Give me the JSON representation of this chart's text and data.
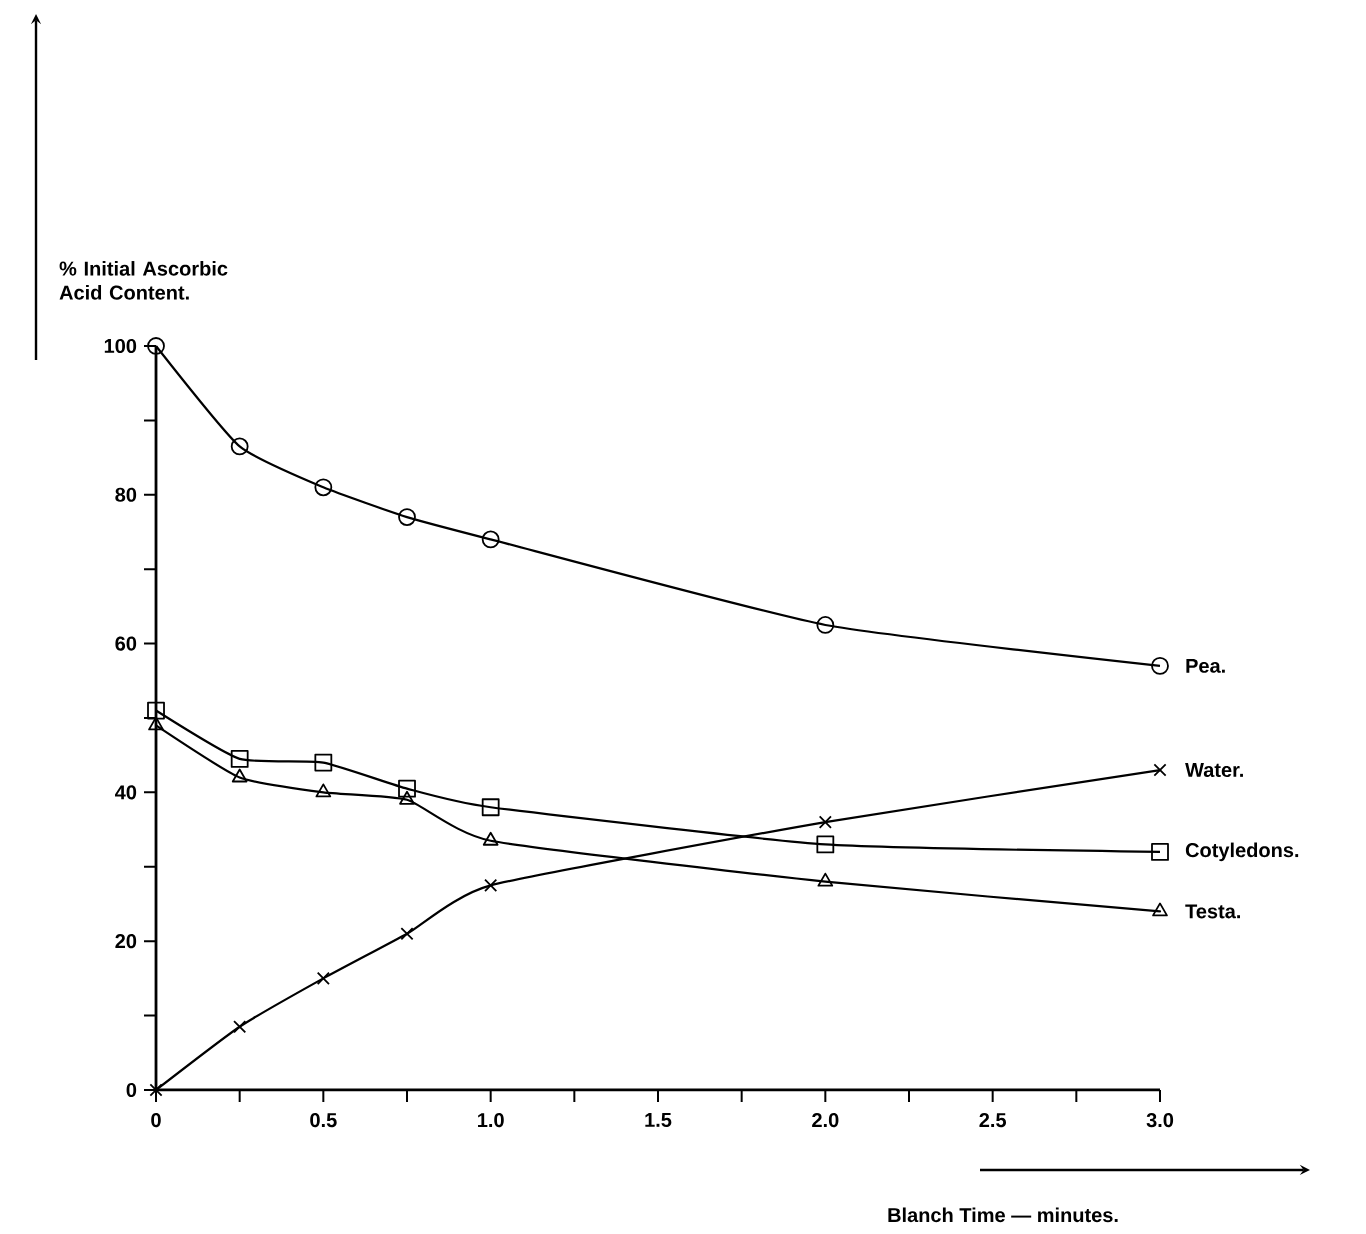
{
  "chart_data": {
    "type": "line",
    "xlabel": "Blanch Time — minutes.",
    "ylabel": "% Initial Ascorbic Acid Content.",
    "x": [
      0,
      0.25,
      0.5,
      0.75,
      1.0,
      2.0,
      3.0
    ],
    "series": [
      {
        "name": "Pea.",
        "color": "#000000",
        "marker": "circle",
        "values": [
          100,
          86.5,
          81,
          77,
          74,
          62.5,
          57
        ]
      },
      {
        "name": "Water.",
        "color": "#000000",
        "marker": "cross",
        "values": [
          0,
          8.5,
          15,
          21,
          27.5,
          36,
          43
        ]
      },
      {
        "name": "Cotyledons.",
        "color": "#000000",
        "marker": "square",
        "values": [
          51,
          44.5,
          44,
          40.5,
          38,
          33,
          32
        ]
      },
      {
        "name": "Testa.",
        "color": "#000000",
        "marker": "triangle",
        "values": [
          49,
          42,
          40,
          39,
          33.5,
          28,
          24
        ]
      }
    ],
    "xlim": [
      0,
      3
    ],
    "xticks": [
      0,
      {
        "value": 0.25,
        "label": null
      },
      {
        "value": 0.5,
        "label": "0.5"
      },
      {
        "value": 0.75,
        "label": null
      },
      {
        "value": 1.0,
        "label": "1.0"
      },
      {
        "value": 1.25,
        "label": null
      },
      {
        "value": 1.5,
        "label": "1.5"
      },
      {
        "value": 1.75,
        "label": null
      },
      {
        "value": 2.0,
        "label": "2.0"
      },
      {
        "value": 2.25,
        "label": null
      },
      {
        "value": 2.5,
        "label": "2.5"
      },
      {
        "value": 2.75,
        "label": null
      },
      {
        "value": 3.0,
        "label": "3.0"
      }
    ],
    "ylim": [
      0,
      100
    ],
    "yticks": [
      0,
      {
        "value": 10,
        "label": null
      },
      20,
      {
        "value": 30,
        "label": null
      },
      40,
      {
        "value": 50,
        "label": null
      },
      60,
      {
        "value": 70,
        "label": null
      },
      80,
      {
        "value": 90,
        "label": null
      },
      100
    ],
    "grid": false,
    "legend": false,
    "line_style": "solid"
  }
}
